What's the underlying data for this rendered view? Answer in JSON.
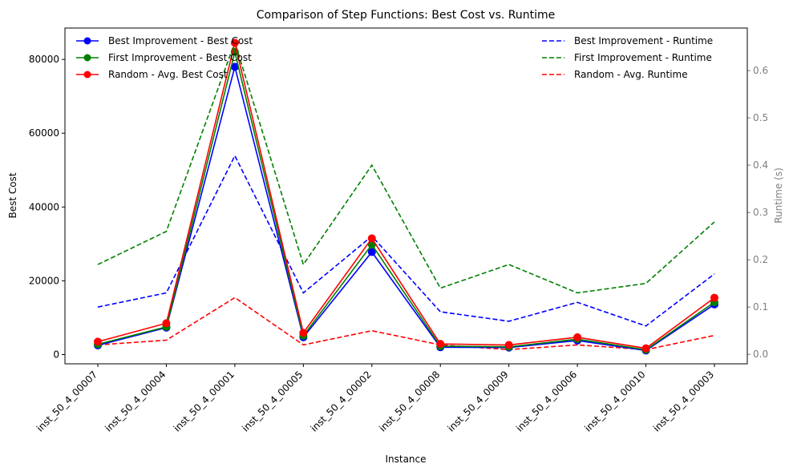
{
  "chart_data": {
    "type": "line",
    "title": "Comparison of Step Functions: Best Cost vs. Runtime",
    "xlabel": "Instance",
    "ylabel": "Best Cost",
    "y2label": "Runtime (s)",
    "categories": [
      "inst_50_4_00007",
      "inst_50_4_00004",
      "inst_50_4_00001",
      "inst_50_4_00005",
      "inst_50_4_00002",
      "inst_50_4_00008",
      "inst_50_4_00009",
      "inst_50_4_00006",
      "inst_50_4_00010",
      "inst_50_4_00003"
    ],
    "ylim": [
      -2500,
      88500
    ],
    "y2lim": [
      -0.02,
      0.69
    ],
    "yticks": [
      0,
      20000,
      40000,
      60000,
      80000
    ],
    "y2ticks": [
      0.0,
      0.1,
      0.2,
      0.3,
      0.4,
      0.5,
      0.6
    ],
    "legend_left_position": "top-left",
    "legend_right_position": "top-right",
    "grid": false,
    "cost_series": [
      {
        "name": "Best Improvement - Best Cost",
        "color": "#0000ff",
        "values": [
          2500,
          7300,
          78000,
          4700,
          27800,
          2000,
          1900,
          3800,
          1100,
          13600
        ]
      },
      {
        "name": "First Improvement - Best Cost",
        "color": "#008000",
        "values": [
          2800,
          7500,
          82000,
          5100,
          29800,
          2300,
          2100,
          4200,
          1300,
          14200
        ]
      },
      {
        "name": "Random - Avg. Best Cost",
        "color": "#ff0000",
        "values": [
          3500,
          8500,
          84500,
          5900,
          31500,
          2900,
          2600,
          4700,
          1700,
          15400
        ]
      }
    ],
    "runtime_series": [
      {
        "name": "Best Improvement - Runtime",
        "color": "#0000ff",
        "values": [
          0.1,
          0.13,
          0.42,
          0.13,
          0.25,
          0.09,
          0.07,
          0.11,
          0.06,
          0.17
        ]
      },
      {
        "name": "First Improvement - Runtime",
        "color": "#008000",
        "values": [
          0.19,
          0.26,
          0.66,
          0.19,
          0.4,
          0.14,
          0.19,
          0.13,
          0.15,
          0.28
        ]
      },
      {
        "name": "Random - Avg. Runtime",
        "color": "#ff0000",
        "values": [
          0.02,
          0.03,
          0.12,
          0.02,
          0.05,
          0.02,
          0.01,
          0.02,
          0.01,
          0.04
        ]
      }
    ]
  }
}
